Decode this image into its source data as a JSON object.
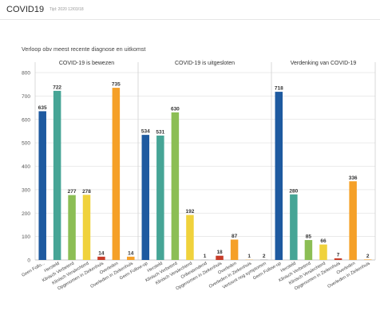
{
  "page": {
    "title": "COVID19",
    "timestamp": "Tijd: 2020 12/03/18",
    "subtitle": "Verloop obv meest recente diagnose en uitkomst"
  },
  "colors": {
    "blue": "#1e5aa0",
    "teal": "#46a596",
    "green": "#8cbe55",
    "yellow": "#f0d23c",
    "red": "#c83c28",
    "orange": "#f5a028",
    "gray": "#aaaaaa"
  },
  "chart_data": {
    "type": "bar",
    "ylim": [
      0,
      800
    ],
    "yticks": [
      0,
      100,
      200,
      300,
      400,
      500,
      600,
      700,
      800
    ],
    "grid": true,
    "panels": [
      {
        "title": "COVID-19 is bewezen",
        "categories": [
          "Geen Follo...",
          "Hersteld",
          "Klinisch Verbeterd",
          "Klinisch Verslechterd",
          "Opgenomen in Ziekenhuis",
          "Overleden",
          "Overleden in Ziekenhuis"
        ],
        "values": [
          635,
          722,
          277,
          278,
          14,
          735,
          14
        ],
        "colors": [
          "blue",
          "teal",
          "green",
          "yellow",
          "red",
          "orange",
          "orange"
        ]
      },
      {
        "title": "COVID-19 is uitgesloten",
        "categories": [
          "Geen Follow-up",
          "Hersteld",
          "Klinisch Verbeterd",
          "Klinisch Verslechterd",
          "Onbestendend",
          "Opgenomen in Ziekenhuis",
          "Overleden",
          "Overleden in Ziekenhuis",
          "Vertoont nog symptomen"
        ],
        "values": [
          534,
          531,
          630,
          192,
          1,
          18,
          87,
          1,
          2
        ],
        "colors": [
          "blue",
          "teal",
          "green",
          "yellow",
          "gray",
          "red",
          "orange",
          "orange",
          "gray"
        ]
      },
      {
        "title": "Verdenking van COVID-19",
        "categories": [
          "Geen Follow-up",
          "Hersteld",
          "Klinisch Verbeterd",
          "Klinisch Verslechterd",
          "Opgenomen in Ziekenhuis",
          "Overleden",
          "Overleden in Ziekenhuis"
        ],
        "values": [
          718,
          280,
          85,
          66,
          7,
          336,
          2
        ],
        "colors": [
          "blue",
          "teal",
          "green",
          "yellow",
          "red",
          "orange",
          "orange"
        ]
      }
    ]
  }
}
